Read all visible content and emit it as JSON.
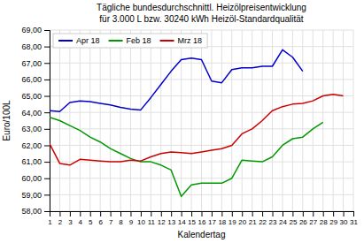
{
  "chart_data": {
    "type": "line",
    "title": "Tägliche bundesdurchschnittl. Heizölpreisentwicklung",
    "subtitle": "für 3.000 L bzw. 30240 kWh Heizöl-Standardqualität",
    "x_label": "Kalendertag",
    "y_label": "Euro/100L",
    "x": [
      1,
      2,
      3,
      4,
      5,
      6,
      7,
      8,
      9,
      10,
      11,
      12,
      13,
      14,
      15,
      16,
      17,
      18,
      19,
      20,
      21,
      22,
      23,
      24,
      25,
      26,
      27,
      28,
      29,
      30,
      31
    ],
    "xlim": [
      1,
      31
    ],
    "xticks": [
      1,
      2,
      3,
      4,
      5,
      6,
      7,
      8,
      9,
      10,
      11,
      12,
      13,
      14,
      15,
      16,
      17,
      18,
      19,
      20,
      21,
      22,
      23,
      24,
      25,
      26,
      27,
      28,
      29,
      30,
      31
    ],
    "ylim": [
      58.0,
      69.0
    ],
    "yticks": [
      {
        "value": 58.0,
        "label": "58,00"
      },
      {
        "value": 59.0,
        "label": "59,00"
      },
      {
        "value": 60.0,
        "label": "60,00"
      },
      {
        "value": 61.0,
        "label": "61,00"
      },
      {
        "value": 62.0,
        "label": "62,00"
      },
      {
        "value": 63.0,
        "label": "63,00"
      },
      {
        "value": 64.0,
        "label": "64,00"
      },
      {
        "value": 65.0,
        "label": "65,00"
      },
      {
        "value": 66.0,
        "label": "66,00"
      },
      {
        "value": 67.0,
        "label": "67,00"
      },
      {
        "value": 68.0,
        "label": "68,00"
      },
      {
        "value": 69.0,
        "label": "69,00"
      }
    ],
    "grid": true,
    "legend": "upper left",
    "series": [
      {
        "name": "Apr 18",
        "color": "#0000cc",
        "values": [
          64.1,
          64.05,
          64.6,
          64.7,
          64.65,
          64.55,
          64.45,
          64.3,
          64.2,
          64.15,
          64.9,
          65.7,
          66.5,
          67.2,
          67.3,
          67.2,
          65.9,
          65.8,
          66.6,
          66.7,
          66.7,
          66.8,
          66.8,
          67.8,
          67.35,
          66.5,
          null,
          null,
          null,
          null,
          null
        ]
      },
      {
        "name": "Feb 18",
        "color": "#009900",
        "values": [
          63.7,
          63.5,
          63.2,
          62.9,
          62.5,
          62.2,
          61.8,
          61.5,
          61.2,
          61.0,
          61.0,
          60.8,
          60.5,
          58.9,
          59.6,
          59.7,
          59.7,
          59.7,
          60.0,
          61.1,
          61.05,
          61.0,
          61.3,
          62.0,
          62.4,
          62.5,
          63.0,
          63.4,
          null,
          null,
          null
        ]
      },
      {
        "name": "Mrz 18",
        "color": "#cc0000",
        "values": [
          62.1,
          60.9,
          60.8,
          61.15,
          61.1,
          61.05,
          61.0,
          61.0,
          61.1,
          61.05,
          61.3,
          61.5,
          61.6,
          61.55,
          61.5,
          61.6,
          61.7,
          61.8,
          62.0,
          62.7,
          63.0,
          63.5,
          64.1,
          64.35,
          64.5,
          64.55,
          64.7,
          65.0,
          65.1,
          65.0,
          null
        ]
      }
    ]
  }
}
